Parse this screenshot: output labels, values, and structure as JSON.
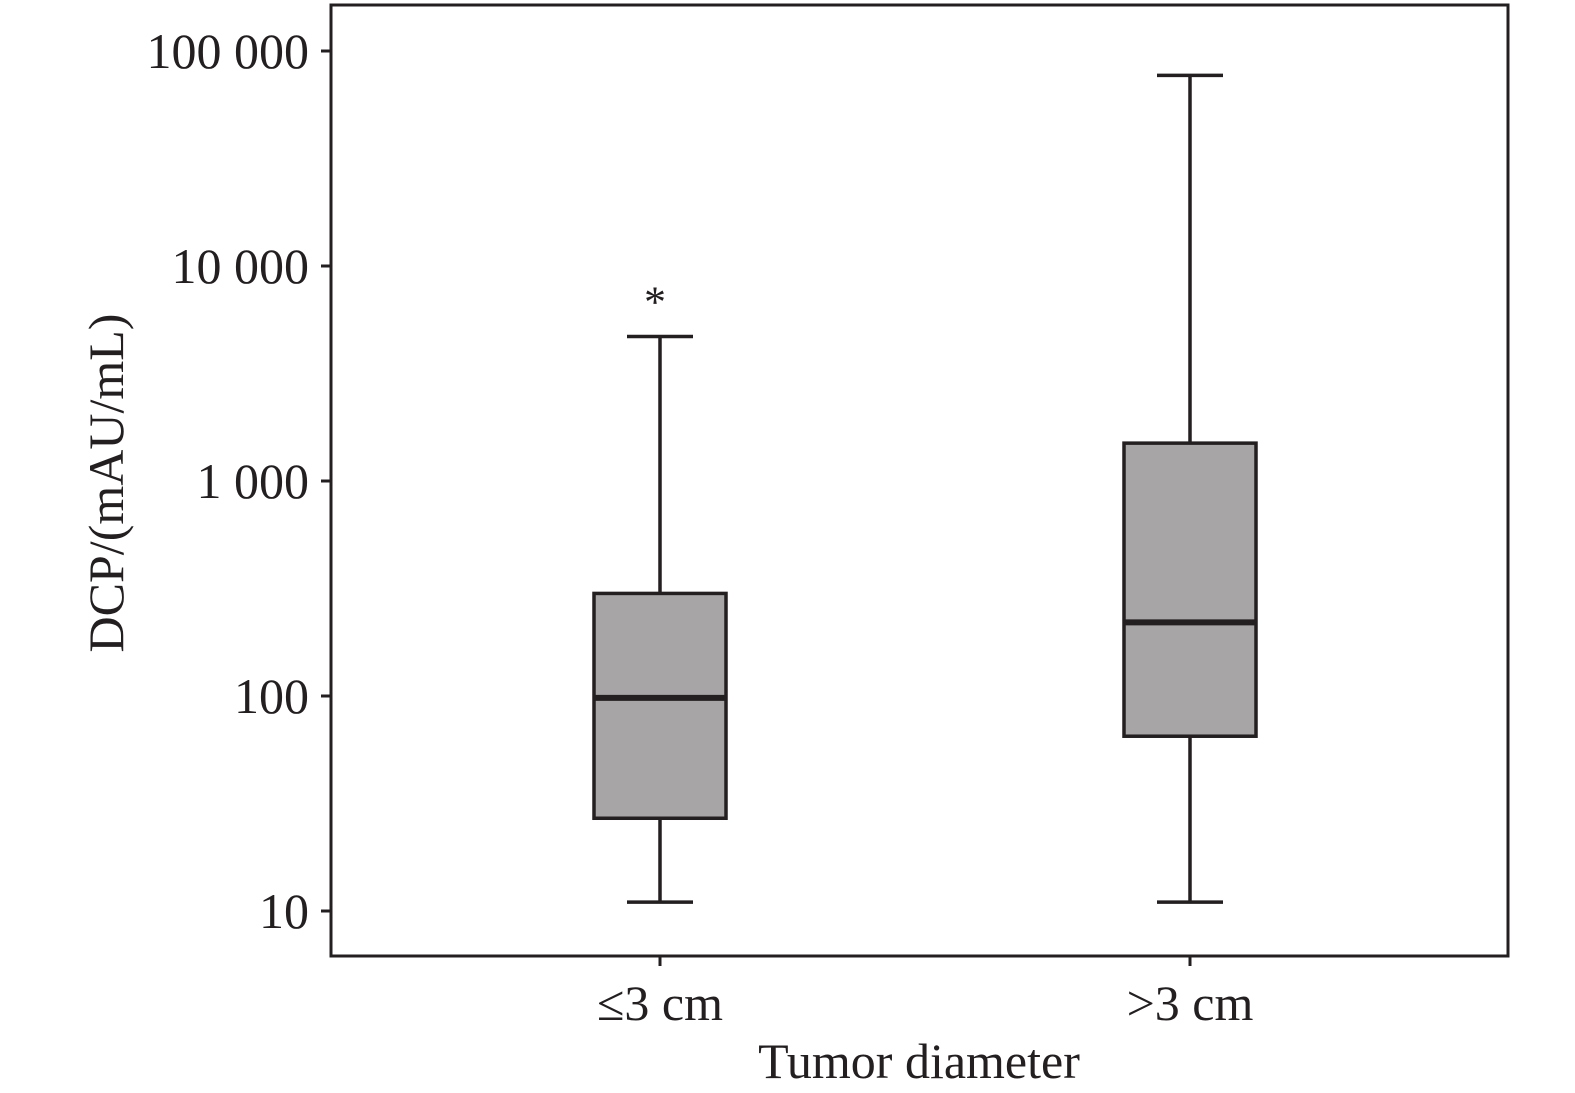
{
  "chart_data": {
    "type": "box",
    "xlabel": "Tumor diameter",
    "ylabel": "DCP/(mAU/mL)",
    "yscale": "log",
    "ylim": [
      10,
      100000
    ],
    "yticks": [
      {
        "value": 10,
        "label": "10"
      },
      {
        "value": 100,
        "label": "100"
      },
      {
        "value": 1000,
        "label": "1 000"
      },
      {
        "value": 10000,
        "label": "10 000"
      },
      {
        "value": 100000,
        "label": "100 000"
      }
    ],
    "categories": [
      "≤3 cm",
      ">3 cm"
    ],
    "boxes": [
      {
        "category": "≤3 cm",
        "whisker_low": 11,
        "q1": 27,
        "median": 98,
        "q3": 300,
        "whisker_high": 4700,
        "annotation": "*"
      },
      {
        "category": ">3 cm",
        "whisker_low": 11,
        "q1": 65,
        "median": 220,
        "q3": 1500,
        "whisker_high": 77000,
        "annotation": ""
      }
    ],
    "grid": false,
    "colors": {
      "box_fill": "#a7a5a6",
      "stroke": "#231f20"
    }
  }
}
